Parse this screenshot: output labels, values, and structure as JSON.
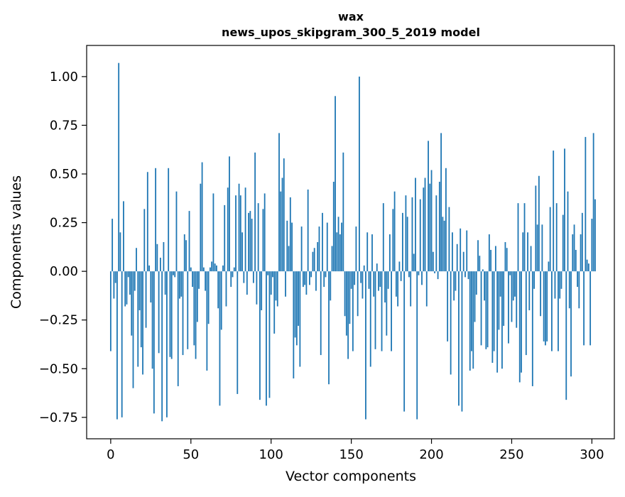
{
  "chart_data": {
    "type": "bar",
    "title": "wax",
    "subtitle": "news_upos_skipgram_300_5_2019 model",
    "xlabel": "Vector components",
    "ylabel": "Components values",
    "xlim": [
      -15,
      314
    ],
    "ylim": [
      -0.86,
      1.16
    ],
    "xticks": [
      0,
      50,
      100,
      150,
      200,
      250,
      300
    ],
    "yticks": [
      -0.75,
      -0.5,
      -0.25,
      0.0,
      0.25,
      0.5,
      0.75,
      1.0
    ],
    "ytick_labels": [
      "−0.75",
      "−0.50",
      "−0.25",
      "0.00",
      "0.25",
      "0.50",
      "0.75",
      "1.00"
    ],
    "grid": false,
    "bar_color": "#1f77b4",
    "x_start": 0,
    "values": [
      -0.41,
      0.27,
      -0.14,
      -0.06,
      -0.76,
      1.07,
      0.2,
      -0.75,
      0.36,
      -0.18,
      -0.17,
      -0.03,
      -0.12,
      -0.33,
      -0.6,
      -0.1,
      0.12,
      -0.49,
      -0.2,
      -0.39,
      -0.53,
      0.32,
      -0.29,
      0.51,
      0.03,
      -0.16,
      -0.5,
      -0.73,
      0.53,
      0.14,
      -0.42,
      0.07,
      -0.77,
      0.15,
      -0.12,
      -0.75,
      0.53,
      -0.44,
      -0.45,
      -0.02,
      -0.03,
      0.41,
      -0.59,
      -0.14,
      -0.13,
      -0.43,
      0.19,
      0.16,
      -0.4,
      0.31,
      0.02,
      -0.08,
      -0.38,
      -0.45,
      -0.26,
      -0.09,
      0.45,
      0.56,
      0.02,
      -0.1,
      -0.51,
      -0.27,
      0.02,
      0.05,
      0.4,
      0.04,
      0.03,
      -0.19,
      -0.69,
      -0.3,
      0.03,
      0.34,
      -0.18,
      0.43,
      0.59,
      -0.08,
      -0.03,
      0.02,
      0.39,
      -0.63,
      0.45,
      0.39,
      0.2,
      -0.06,
      0.43,
      -0.12,
      0.3,
      0.31,
      0.27,
      -0.06,
      0.61,
      -0.17,
      0.35,
      -0.66,
      -0.2,
      0.32,
      0.4,
      -0.69,
      -0.02,
      -0.65,
      -0.12,
      -0.03,
      -0.32,
      -0.15,
      -0.18,
      0.71,
      0.41,
      0.48,
      0.58,
      -0.13,
      0.26,
      0.13,
      0.38,
      0.25,
      -0.55,
      -0.34,
      -0.38,
      -0.28,
      -0.49,
      0.23,
      -0.08,
      -0.07,
      -0.12,
      0.42,
      -0.07,
      -0.03,
      0.1,
      0.12,
      -0.1,
      0.15,
      0.23,
      -0.43,
      0.3,
      -0.08,
      -0.03,
      0.25,
      -0.58,
      -0.15,
      0.13,
      0.46,
      0.9,
      0.2,
      0.28,
      0.19,
      0.25,
      0.61,
      -0.23,
      -0.33,
      -0.45,
      -0.27,
      -0.09,
      -0.41,
      -0.07,
      0.23,
      -0.23,
      1.0,
      -0.06,
      -0.14,
      0.03,
      -0.76,
      0.2,
      -0.09,
      -0.49,
      0.19,
      -0.13,
      -0.4,
      0.04,
      -0.1,
      -0.08,
      -0.41,
      0.35,
      -0.16,
      -0.33,
      -0.09,
      0.19,
      -0.41,
      0.32,
      0.41,
      -0.13,
      -0.18,
      0.05,
      -0.05,
      0.3,
      -0.72,
      0.39,
      0.28,
      -0.03,
      -0.18,
      0.38,
      0.09,
      0.48,
      -0.76,
      -0.02,
      0.37,
      -0.07,
      0.43,
      0.48,
      -0.18,
      0.67,
      0.45,
      0.52,
      0.1,
      -0.01,
      0.39,
      -0.04,
      0.46,
      0.71,
      0.28,
      0.26,
      0.53,
      -0.36,
      0.33,
      -0.53,
      0.2,
      -0.15,
      -0.1,
      0.14,
      -0.69,
      0.22,
      -0.72,
      0.1,
      -0.03,
      0.21,
      -0.04,
      -0.51,
      -0.41,
      -0.5,
      -0.26,
      -0.12,
      0.16,
      0.08,
      -0.38,
      0.01,
      -0.15,
      -0.4,
      -0.39,
      0.19,
      0.11,
      -0.47,
      -0.41,
      0.13,
      -0.52,
      -0.3,
      -0.13,
      -0.5,
      -0.28,
      0.15,
      0.12,
      -0.37,
      -0.02,
      -0.26,
      -0.15,
      -0.13,
      -0.29,
      0.35,
      -0.57,
      -0.52,
      0.2,
      0.35,
      -0.43,
      0.2,
      -0.2,
      0.13,
      -0.59,
      -0.09,
      0.44,
      0.24,
      0.49,
      -0.23,
      0.24,
      -0.36,
      -0.38,
      -0.36,
      0.05,
      0.33,
      -0.41,
      0.62,
      -0.14,
      0.35,
      -0.41,
      -0.14,
      -0.09,
      0.29,
      0.63,
      -0.66,
      0.41,
      -0.19,
      -0.54,
      0.19,
      0.24,
      0.11,
      -0.08,
      -0.19,
      0.19,
      0.3,
      -0.38,
      0.69,
      0.06,
      0.04,
      -0.38,
      0.27,
      0.71,
      0.37
    ]
  }
}
